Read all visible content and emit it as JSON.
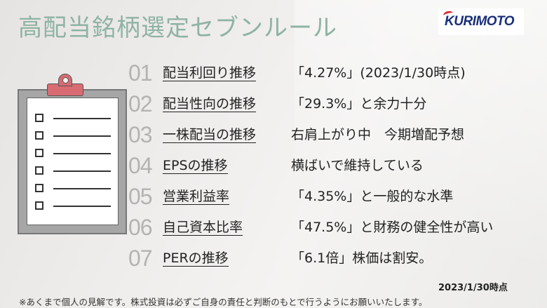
{
  "title": "高配当銘柄選定セブンルール",
  "logo": {
    "text": "KURIMOTO"
  },
  "rules": [
    {
      "number": "01",
      "name": "配当利回り推移",
      "detail": "「4.27%」(2023/1/30時点)"
    },
    {
      "number": "02",
      "name": "配当性向の推移",
      "detail": "「29.3%」と余力十分"
    },
    {
      "number": "03",
      "name": "一株配当の推移",
      "detail": "右肩上がり中　今期増配予想"
    },
    {
      "number": "04",
      "name": "EPSの推移",
      "detail": "横ばいで維持している"
    },
    {
      "number": "05",
      "name": "営業利益率",
      "detail": "「4.35%」と一般的な水準"
    },
    {
      "number": "06",
      "name": "自己資本比率",
      "detail": "「47.5%」と財務の健全性が高い"
    },
    {
      "number": "07",
      "name": "PERの推移",
      "detail": "「6.1倍」株価は割安。"
    }
  ],
  "date_note": "2023/1/30時点",
  "disclaimer": "※あくまで個人の見解です。株式投資は必ずご自身の責任と判断のもとで行うようにお願いいたします。",
  "icons": {
    "clipboard": "clipboard-checklist-icon",
    "logo": "kurimoto-logo"
  },
  "colors": {
    "title": "#8fb3a3",
    "number": "#b3b3b3",
    "clip": "#d96b73",
    "logo_text": "#1a2f7a",
    "logo_accent": "#d8262f"
  }
}
